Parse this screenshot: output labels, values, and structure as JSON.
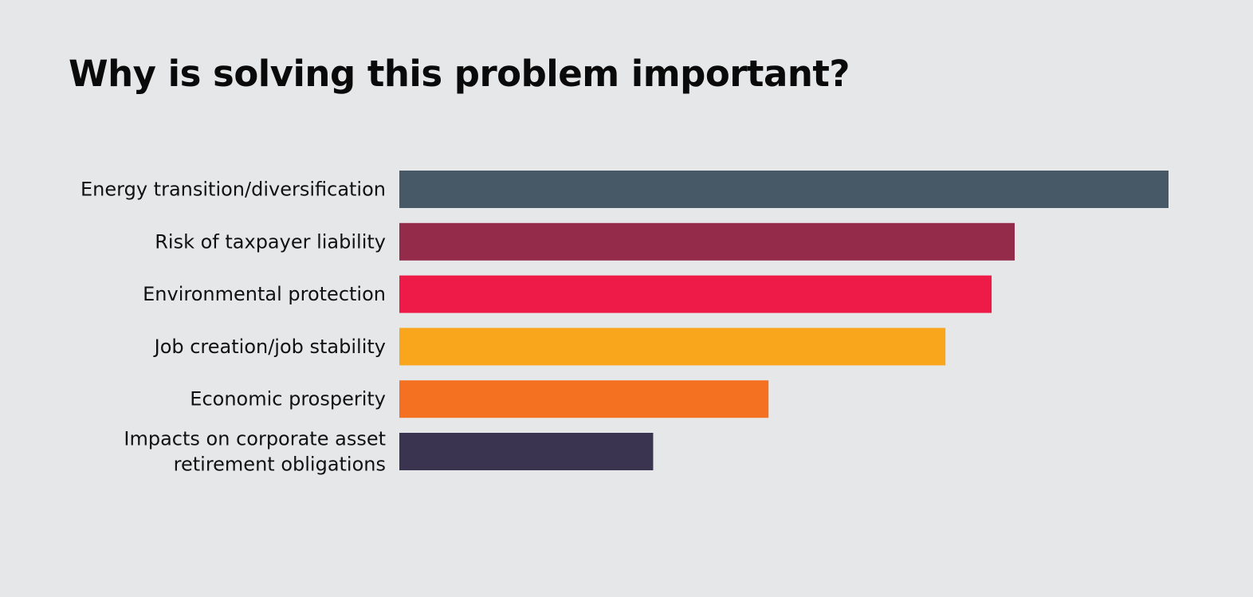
{
  "chart_data": {
    "type": "bar",
    "orientation": "horizontal",
    "title": "Why is solving this problem important?",
    "xlabel": "",
    "ylabel": "",
    "xlim": [
      0,
      100
    ],
    "grid": false,
    "legend": "none",
    "value_units": "relative (% of largest bar, estimated; no axis shown)",
    "categories": [
      [
        "Energy transition/diversification"
      ],
      [
        "Risk of taxpayer liability"
      ],
      [
        "Environmental protection"
      ],
      [
        "Job creation/job stability"
      ],
      [
        "Economic prosperity"
      ],
      [
        "Impacts on corporate asset",
        "retirement obligations"
      ]
    ],
    "values": [
      100,
      80,
      77,
      71,
      48,
      33
    ],
    "colors": [
      "#475867",
      "#952b4b",
      "#ee1a47",
      "#f9a61c",
      "#f37121",
      "#3b3450"
    ]
  }
}
